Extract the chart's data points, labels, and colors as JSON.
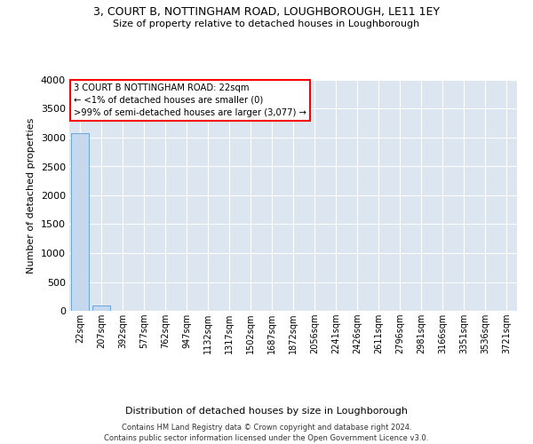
{
  "title": "3, COURT B, NOTTINGHAM ROAD, LOUGHBOROUGH, LE11 1EY",
  "subtitle": "Size of property relative to detached houses in Loughborough",
  "xlabel": "Distribution of detached houses by size in Loughborough",
  "ylabel": "Number of detached properties",
  "categories": [
    "22sqm",
    "207sqm",
    "392sqm",
    "577sqm",
    "762sqm",
    "947sqm",
    "1132sqm",
    "1317sqm",
    "1502sqm",
    "1687sqm",
    "1872sqm",
    "2056sqm",
    "2241sqm",
    "2426sqm",
    "2611sqm",
    "2796sqm",
    "2981sqm",
    "3166sqm",
    "3351sqm",
    "3536sqm",
    "3721sqm"
  ],
  "values": [
    3077,
    100,
    0,
    0,
    0,
    0,
    0,
    0,
    0,
    0,
    0,
    0,
    0,
    0,
    0,
    0,
    0,
    0,
    0,
    0,
    0
  ],
  "bar_color": "#c5d8ee",
  "bar_edge_color": "#5b9bd5",
  "ylim": [
    0,
    4000
  ],
  "yticks": [
    0,
    500,
    1000,
    1500,
    2000,
    2500,
    3000,
    3500,
    4000
  ],
  "annotation_line1": "3 COURT B NOTTINGHAM ROAD: 22sqm",
  "annotation_line2": "← <1% of detached houses are smaller (0)",
  "annotation_line3": ">99% of semi-detached houses are larger (3,077) →",
  "plot_bg_color": "#dce6f1",
  "footer_line1": "Contains HM Land Registry data © Crown copyright and database right 2024.",
  "footer_line2": "Contains public sector information licensed under the Open Government Licence v3.0."
}
